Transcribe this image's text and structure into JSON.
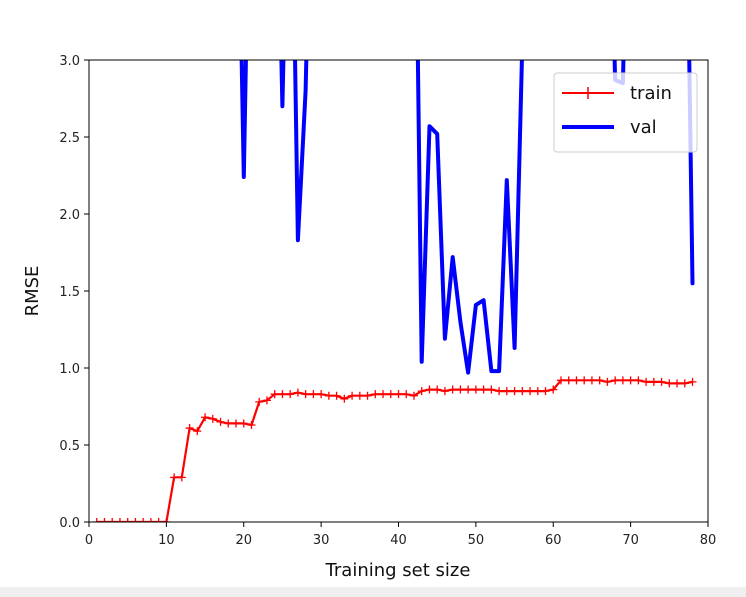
{
  "chart_data": {
    "type": "line",
    "title": "",
    "xlabel": "Training set size",
    "ylabel": "RMSE",
    "xlim": [
      0,
      80
    ],
    "ylim": [
      0,
      3.0
    ],
    "xticks": [
      0,
      10,
      20,
      30,
      40,
      50,
      60,
      70,
      80
    ],
    "yticks": [
      0.0,
      0.5,
      1.0,
      1.5,
      2.0,
      2.5,
      3.0
    ],
    "xtick_labels": [
      "0",
      "10",
      "20",
      "30",
      "40",
      "50",
      "60",
      "70",
      "80"
    ],
    "ytick_labels": [
      "0.0",
      "0.5",
      "1.0",
      "1.5",
      "2.0",
      "2.5",
      "3.0"
    ],
    "grid": false,
    "legend_position": "upper right",
    "series": [
      {
        "name": "train",
        "color": "#ff0000",
        "style": "line-with-plus-markers",
        "x": [
          1,
          2,
          3,
          4,
          5,
          6,
          7,
          8,
          9,
          10,
          11,
          12,
          13,
          14,
          15,
          16,
          17,
          18,
          19,
          20,
          21,
          22,
          23,
          24,
          25,
          26,
          27,
          28,
          29,
          30,
          31,
          32,
          33,
          34,
          35,
          36,
          37,
          38,
          39,
          40,
          41,
          42,
          43,
          44,
          45,
          46,
          47,
          48,
          49,
          50,
          51,
          52,
          53,
          54,
          55,
          56,
          57,
          58,
          59,
          60,
          61,
          62,
          63,
          64,
          65,
          66,
          67,
          68,
          69,
          70,
          71,
          72,
          73,
          74,
          75,
          76,
          77,
          78
        ],
        "values": [
          0,
          0,
          0,
          0,
          0,
          0,
          0,
          0,
          0,
          0,
          0.29,
          0.29,
          0.61,
          0.59,
          0.68,
          0.67,
          0.65,
          0.64,
          0.64,
          0.64,
          0.63,
          0.78,
          0.79,
          0.83,
          0.83,
          0.83,
          0.84,
          0.83,
          0.83,
          0.83,
          0.82,
          0.82,
          0.8,
          0.82,
          0.82,
          0.82,
          0.83,
          0.83,
          0.83,
          0.83,
          0.83,
          0.82,
          0.85,
          0.86,
          0.86,
          0.85,
          0.86,
          0.86,
          0.86,
          0.86,
          0.86,
          0.86,
          0.85,
          0.85,
          0.85,
          0.85,
          0.85,
          0.85,
          0.85,
          0.86,
          0.92,
          0.92,
          0.92,
          0.92,
          0.92,
          0.92,
          0.91,
          0.92,
          0.92,
          0.92,
          0.92,
          0.91,
          0.91,
          0.91,
          0.9,
          0.9,
          0.9,
          0.91
        ]
      },
      {
        "name": "val",
        "color": "#0000ff",
        "style": "thick-line",
        "x": [
          19,
          20,
          21,
          24,
          25,
          26,
          27,
          28,
          29,
          42,
          43,
          44,
          45,
          46,
          47,
          48,
          49,
          50,
          51,
          52,
          53,
          54,
          55,
          56,
          57,
          67,
          68,
          69,
          70,
          77,
          78
        ],
        "values": [
          5.0,
          2.24,
          5.0,
          5.0,
          2.7,
          5.0,
          1.83,
          2.8,
          5.0,
          5.0,
          1.04,
          2.57,
          2.52,
          1.19,
          1.72,
          1.3,
          0.97,
          1.41,
          1.44,
          0.98,
          0.98,
          2.22,
          1.13,
          3.1,
          5.0,
          5.0,
          2.87,
          2.85,
          5.0,
          5.0,
          1.55
        ]
      }
    ]
  },
  "legend": {
    "items": [
      {
        "label": "train",
        "color": "#ff0000"
      },
      {
        "label": "val",
        "color": "#0000ff"
      }
    ]
  }
}
